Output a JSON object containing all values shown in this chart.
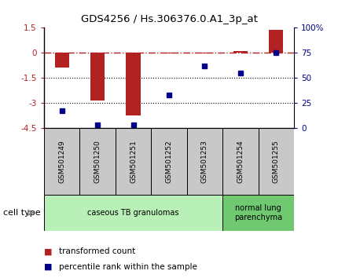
{
  "title": "GDS4256 / Hs.306376.0.A1_3p_at",
  "samples": [
    "GSM501249",
    "GSM501250",
    "GSM501251",
    "GSM501252",
    "GSM501253",
    "GSM501254",
    "GSM501255"
  ],
  "transformed_count": [
    -0.9,
    -2.85,
    -3.75,
    -0.05,
    -0.05,
    0.12,
    1.4
  ],
  "percentile_rank": [
    17,
    3,
    3,
    33,
    62,
    55,
    75
  ],
  "bar_color": "#b22222",
  "dot_color": "#00008b",
  "ylim_left": [
    -4.5,
    1.5
  ],
  "yticks_left": [
    1.5,
    0,
    -1.5,
    -3,
    -4.5
  ],
  "ytick_labels_left": [
    "1.5",
    "0",
    "-1.5",
    "-3",
    "-4.5"
  ],
  "ylim_right": [
    0,
    100
  ],
  "yticks_right": [
    0,
    25,
    50,
    75,
    100
  ],
  "ytick_labels_right": [
    "0",
    "25",
    "50",
    "75",
    "100%"
  ],
  "hline_y": 0,
  "dotted_lines": [
    -1.5,
    -3.0
  ],
  "bar_width": 0.4,
  "cell_types": [
    {
      "label": "caseous TB granulomas",
      "samples": [
        0,
        1,
        2,
        3,
        4
      ],
      "color": "#b8f0b8"
    },
    {
      "label": "normal lung\nparenchyma",
      "samples": [
        5,
        6
      ],
      "color": "#70c870"
    }
  ],
  "legend_items": [
    {
      "label": "transformed count",
      "color": "#b22222"
    },
    {
      "label": "percentile rank within the sample",
      "color": "#00008b"
    }
  ],
  "cell_type_label": "cell type",
  "xlabel_box_color": "#c8c8c8",
  "background_color": "#ffffff"
}
